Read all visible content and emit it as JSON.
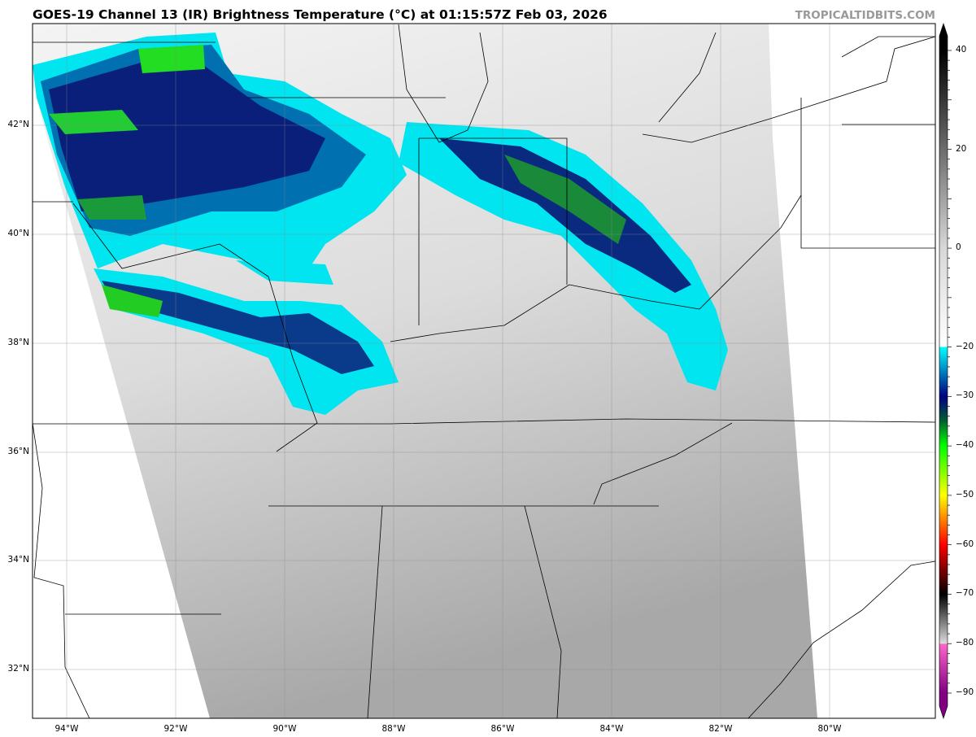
{
  "title": "GOES-19 Channel 13 (IR) Brightness Temperature (°C) at 01:15:57Z Feb 03, 2026",
  "watermark": "TROPICALTIDBITS.COM",
  "longitude_labels": [
    "94°W",
    "92°W",
    "90°W",
    "88°W",
    "86°W",
    "84°W",
    "82°W",
    "80°W"
  ],
  "latitude_labels": [
    "42°N",
    "40°N",
    "38°N",
    "36°N",
    "34°N",
    "32°N"
  ],
  "colorbar": {
    "ticks": [
      "40",
      "20",
      "0",
      "−20",
      "−30",
      "−40",
      "−50",
      "−60",
      "−70",
      "−80",
      "−90"
    ],
    "range": [
      -90,
      40
    ],
    "stops": [
      {
        "value": 40,
        "color": "#000000"
      },
      {
        "value": 0,
        "color": "#d8d8d8"
      },
      {
        "value": -20,
        "color": "#ffffff"
      },
      {
        "value": -20.01,
        "color": "#00ffff"
      },
      {
        "value": -30,
        "color": "#000080"
      },
      {
        "value": -35,
        "color": "#006030"
      },
      {
        "value": -40,
        "color": "#00ff00"
      },
      {
        "value": -50,
        "color": "#ffff00"
      },
      {
        "value": -60,
        "color": "#ff0000"
      },
      {
        "value": -70,
        "color": "#000000"
      },
      {
        "value": -80,
        "color": "#dddddd"
      },
      {
        "value": -80.01,
        "color": "#ff66cc"
      },
      {
        "value": -90,
        "color": "#800080"
      }
    ]
  }
}
